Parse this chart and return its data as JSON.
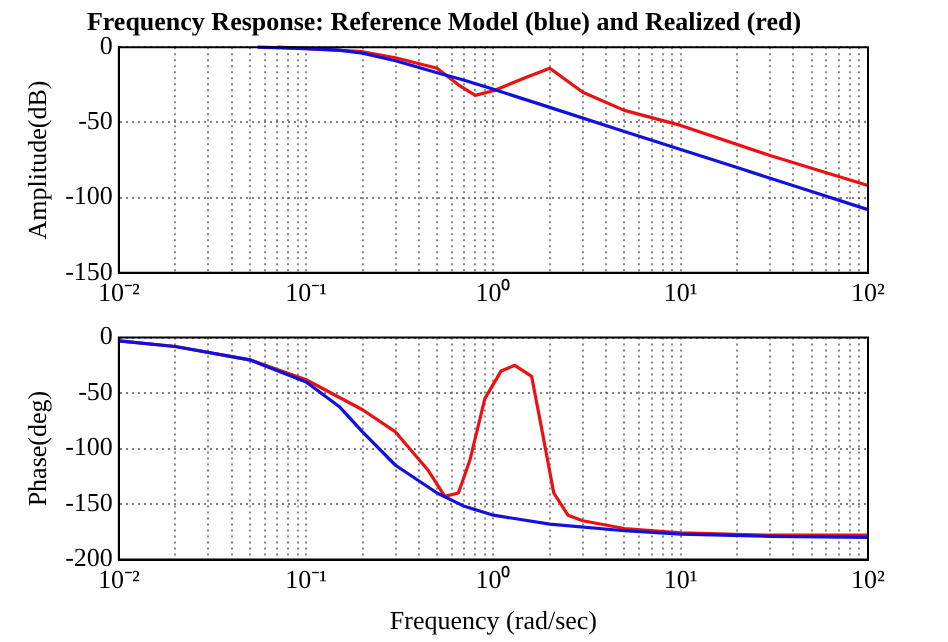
{
  "chart_data": [
    {
      "type": "line",
      "title": "Frequency Response: Reference Model (blue) and Realized (red)",
      "ylabel": "Amplitude(dB)",
      "log": "x",
      "grid": true,
      "xlim": [
        0.01,
        100
      ],
      "ylim": [
        -150,
        0
      ],
      "xticks": [
        {
          "value": 0.01,
          "label": "10⁻²"
        },
        {
          "value": 0.02,
          "label": null
        },
        {
          "value": 0.03,
          "label": null
        },
        {
          "value": 0.04,
          "label": null
        },
        {
          "value": 0.05,
          "label": null
        },
        {
          "value": 0.06,
          "label": null
        },
        {
          "value": 0.07,
          "label": null
        },
        {
          "value": 0.08,
          "label": null
        },
        {
          "value": 0.09,
          "label": null
        },
        {
          "value": 0.1,
          "label": "10⁻¹"
        },
        {
          "value": 0.2,
          "label": null
        },
        {
          "value": 0.3,
          "label": null
        },
        {
          "value": 0.4,
          "label": null
        },
        {
          "value": 0.5,
          "label": null
        },
        {
          "value": 0.6,
          "label": null
        },
        {
          "value": 0.7,
          "label": null
        },
        {
          "value": 0.8,
          "label": null
        },
        {
          "value": 0.9,
          "label": null
        },
        {
          "value": 1,
          "label": "10⁰"
        },
        {
          "value": 2,
          "label": null
        },
        {
          "value": 3,
          "label": null
        },
        {
          "value": 4,
          "label": null
        },
        {
          "value": 5,
          "label": null
        },
        {
          "value": 6,
          "label": null
        },
        {
          "value": 7,
          "label": null
        },
        {
          "value": 8,
          "label": null
        },
        {
          "value": 9,
          "label": null
        },
        {
          "value": 10,
          "label": "10¹"
        },
        {
          "value": 20,
          "label": null
        },
        {
          "value": 30,
          "label": null
        },
        {
          "value": 40,
          "label": null
        },
        {
          "value": 50,
          "label": null
        },
        {
          "value": 60,
          "label": null
        },
        {
          "value": 70,
          "label": null
        },
        {
          "value": 80,
          "label": null
        },
        {
          "value": 90,
          "label": null
        },
        {
          "value": 100,
          "label": "10²"
        }
      ],
      "yticks": [
        0,
        -50,
        -100,
        -150
      ],
      "marker": "none",
      "line_style": "solid",
      "legend": false,
      "series": [
        {
          "color": "#1010e0",
          "x": [
            0.055,
            0.1,
            0.15,
            0.2,
            0.3,
            0.5,
            0.7,
            1,
            2,
            5,
            10,
            20,
            50,
            100
          ],
          "values": [
            0,
            -1,
            -2,
            -4,
            -9,
            -17,
            -22,
            -28,
            -40,
            -56,
            -68,
            -80,
            -96,
            -108
          ]
        },
        {
          "color": "#ee1010",
          "x": [
            0.07,
            0.1,
            0.2,
            0.3,
            0.5,
            0.65,
            0.8,
            1,
            1.5,
            2,
            3,
            5,
            10,
            30,
            100
          ],
          "values": [
            0,
            -1,
            -3,
            -7,
            -14,
            -25,
            -32,
            -29,
            -20,
            -14,
            -30,
            -42,
            -52,
            -72,
            -92
          ]
        }
      ]
    },
    {
      "type": "line",
      "xlabel": "Frequency (rad/sec)",
      "ylabel": "Phase(deg)",
      "log": "x",
      "grid": true,
      "xlim": [
        0.01,
        100
      ],
      "ylim": [
        -200,
        0
      ],
      "xticks": [
        {
          "value": 0.01,
          "label": "10⁻²"
        },
        {
          "value": 0.02,
          "label": null
        },
        {
          "value": 0.03,
          "label": null
        },
        {
          "value": 0.04,
          "label": null
        },
        {
          "value": 0.05,
          "label": null
        },
        {
          "value": 0.06,
          "label": null
        },
        {
          "value": 0.07,
          "label": null
        },
        {
          "value": 0.08,
          "label": null
        },
        {
          "value": 0.09,
          "label": null
        },
        {
          "value": 0.1,
          "label": "10⁻¹"
        },
        {
          "value": 0.2,
          "label": null
        },
        {
          "value": 0.3,
          "label": null
        },
        {
          "value": 0.4,
          "label": null
        },
        {
          "value": 0.5,
          "label": null
        },
        {
          "value": 0.6,
          "label": null
        },
        {
          "value": 0.7,
          "label": null
        },
        {
          "value": 0.8,
          "label": null
        },
        {
          "value": 0.9,
          "label": null
        },
        {
          "value": 1,
          "label": "10⁰"
        },
        {
          "value": 2,
          "label": null
        },
        {
          "value": 3,
          "label": null
        },
        {
          "value": 4,
          "label": null
        },
        {
          "value": 5,
          "label": null
        },
        {
          "value": 6,
          "label": null
        },
        {
          "value": 7,
          "label": null
        },
        {
          "value": 8,
          "label": null
        },
        {
          "value": 9,
          "label": null
        },
        {
          "value": 10,
          "label": "10¹"
        },
        {
          "value": 20,
          "label": null
        },
        {
          "value": 30,
          "label": null
        },
        {
          "value": 40,
          "label": null
        },
        {
          "value": 50,
          "label": null
        },
        {
          "value": 60,
          "label": null
        },
        {
          "value": 70,
          "label": null
        },
        {
          "value": 80,
          "label": null
        },
        {
          "value": 90,
          "label": null
        },
        {
          "value": 100,
          "label": "10²"
        }
      ],
      "yticks": [
        0,
        -50,
        -100,
        -150,
        -200
      ],
      "marker": "none",
      "line_style": "solid",
      "legend": false,
      "series": [
        {
          "color": "#1010e0",
          "x": [
            0.01,
            0.02,
            0.05,
            0.1,
            0.15,
            0.2,
            0.3,
            0.5,
            0.7,
            1,
            2,
            5,
            10,
            30,
            100
          ],
          "values": [
            -3,
            -8,
            -20,
            -40,
            -62,
            -85,
            -115,
            -140,
            -152,
            -160,
            -168,
            -174,
            -177,
            -179,
            -180
          ]
        },
        {
          "color": "#ee1010",
          "x": [
            0.01,
            0.02,
            0.05,
            0.1,
            0.2,
            0.3,
            0.45,
            0.55,
            0.65,
            0.75,
            0.9,
            1.1,
            1.3,
            1.6,
            1.8,
            2.1,
            2.5,
            3,
            5,
            10,
            30,
            100
          ],
          "values": [
            -3,
            -8,
            -20,
            -38,
            -65,
            -85,
            -120,
            -143,
            -140,
            -110,
            -55,
            -30,
            -25,
            -35,
            -80,
            -140,
            -160,
            -165,
            -172,
            -176,
            -178,
            -178
          ]
        }
      ]
    }
  ]
}
